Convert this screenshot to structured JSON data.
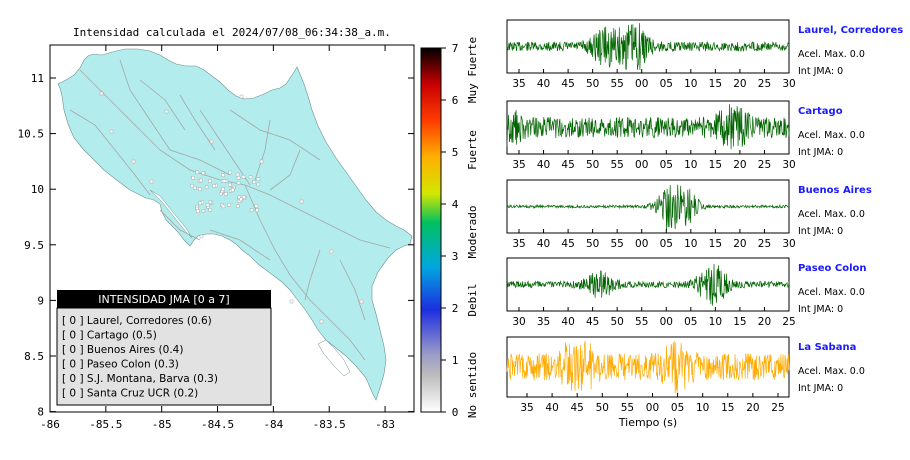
{
  "map": {
    "title": "Intensidad calculada el 2024/07/08_06:34:38_a.m.",
    "xticks": [
      "-86",
      "-85.5",
      "-85",
      "-84.5",
      "-84",
      "-83.5",
      "-83"
    ],
    "yticks": [
      "11",
      "10.5",
      "10",
      "9.5",
      "9",
      "8.5",
      "8"
    ],
    "land_color": "#b2ecec",
    "road_color": "#a6a6a6",
    "legend": {
      "title": "INTENSIDAD JMA [0 a 7]",
      "items": [
        {
          "code": "[ 0 ]",
          "label": "Laurel, Corredores (0.6)"
        },
        {
          "code": "[ 0 ]",
          "label": "Cartago (0.5)"
        },
        {
          "code": "[ 0 ]",
          "label": "Buenos Aires (0.4)"
        },
        {
          "code": "[ 0 ]",
          "label": "Paseo Colon (0.3)"
        },
        {
          "code": "[ 0 ]",
          "label": "S.J. Montana, Barva (0.3)"
        },
        {
          "code": "[ 0 ]",
          "label": "Santa Cruz UCR (0.2)"
        }
      ]
    },
    "colorbar": {
      "ticks": [
        "0",
        "1",
        "2",
        "3",
        "4",
        "5",
        "6",
        "7"
      ],
      "categories": [
        "No sentido",
        "Debil",
        "Moderado",
        "Fuerte",
        "Muy Fuerte"
      ]
    }
  },
  "seismo": {
    "xlabel": "Tiempo (s)",
    "stations": [
      {
        "name": "Laurel, Corredores",
        "acel": "Acel. Max. 0.0",
        "int": "Int JMA: 0",
        "ticks": [
          "35",
          "40",
          "45",
          "50",
          "55",
          "00",
          "05",
          "10",
          "15",
          "20",
          "25",
          "30"
        ],
        "color": "#006400"
      },
      {
        "name": "Cartago",
        "acel": "Acel. Max. 0.0",
        "int": "Int JMA: 0",
        "ticks": [
          "35",
          "40",
          "45",
          "50",
          "55",
          "00",
          "05",
          "10",
          "15",
          "20",
          "25",
          "30"
        ],
        "color": "#006400"
      },
      {
        "name": "Buenos Aires",
        "acel": "Acel. Max. 0.0",
        "int": "Int JMA: 0",
        "ticks": [
          "35",
          "40",
          "45",
          "50",
          "55",
          "00",
          "05",
          "10",
          "15",
          "20",
          "25",
          "30"
        ],
        "color": "#006400"
      },
      {
        "name": "Paseo Colon",
        "acel": "Acel. Max. 0.0",
        "int": "Int JMA: 0",
        "ticks": [
          "30",
          "35",
          "40",
          "45",
          "50",
          "55",
          "00",
          "05",
          "10",
          "15",
          "20",
          "25"
        ],
        "color": "#006400"
      },
      {
        "name": "La Sabana",
        "acel": "Acel. Max. 0.0",
        "int": "Int JMA: 0",
        "ticks": [
          "35",
          "40",
          "45",
          "50",
          "55",
          "00",
          "05",
          "10",
          "15",
          "20",
          "25"
        ],
        "color": "#ffaa00"
      }
    ]
  }
}
